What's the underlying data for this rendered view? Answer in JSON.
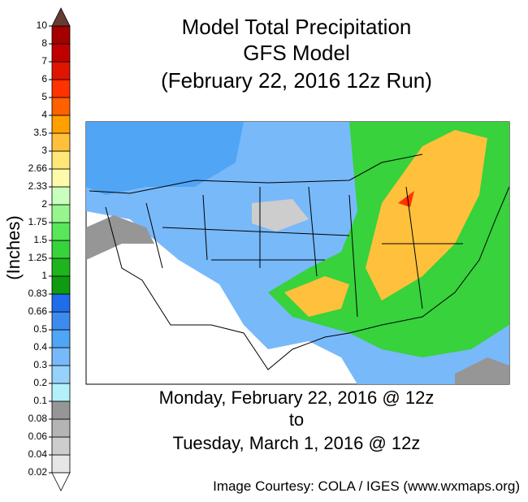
{
  "header": {
    "title_lines": [
      "Model Total Precipitation",
      "GFS Model",
      "(February 22, 2016 12z Run)"
    ]
  },
  "colorbar": {
    "label": "(Inches)",
    "levels": [
      0.02,
      0.04,
      0.06,
      0.08,
      0.1,
      0.2,
      0.3,
      0.4,
      0.5,
      0.66,
      0.83,
      1,
      1.25,
      1.5,
      1.75,
      2,
      2.33,
      2.66,
      3,
      3.5,
      4,
      5,
      6,
      7,
      8,
      10
    ],
    "colors": [
      "#e6e6e6",
      "#cdcdcd",
      "#b4b4b4",
      "#969696",
      "#b4f0fa",
      "#96d2fa",
      "#78b9fa",
      "#50a5f5",
      "#3c8cf0",
      "#1e6eeb",
      "#0f9b0f",
      "#1eb41e",
      "#37d23c",
      "#5ae65a",
      "#96f58c",
      "#c8ffbe",
      "#fffaaa",
      "#ffe878",
      "#ffc03c",
      "#ffa000",
      "#ff6000",
      "#ff3200",
      "#e11400",
      "#c00000",
      "#a50000"
    ],
    "under_color": "#ffffff",
    "over_color": "#643c32"
  },
  "footer": {
    "period_lines": [
      "Monday, February 22, 2016 @ 12z",
      "to",
      "Tuesday, March 1, 2016 @ 12z"
    ],
    "credit": "Image Courtesy: COLA / IGES (www.wxmaps.org)"
  }
}
